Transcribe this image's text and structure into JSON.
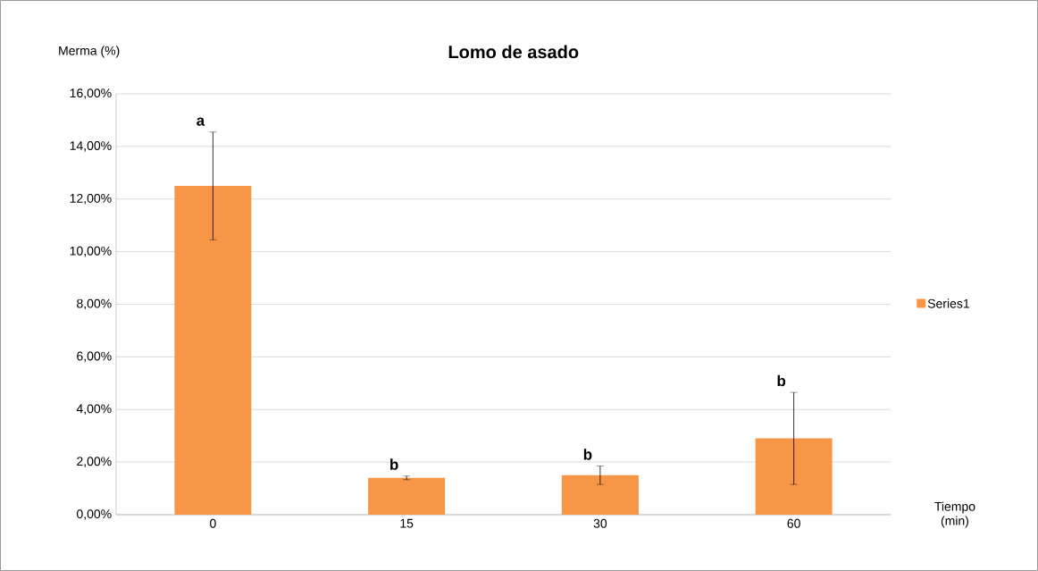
{
  "chart_data": {
    "type": "bar",
    "title": "Lomo de asado",
    "ylabel": "Merma (%)",
    "xlabel": "Tiempo (min)",
    "categories": [
      "0",
      "15",
      "30",
      "60"
    ],
    "series": [
      {
        "name": "Series1",
        "color": "#f79646",
        "values": [
          12.5,
          1.4,
          1.5,
          2.9
        ],
        "errors": [
          2.05,
          0.07,
          0.35,
          1.75
        ]
      }
    ],
    "ylim": [
      0,
      16
    ],
    "yticks": [
      {
        "value": 0,
        "label": "0,00%"
      },
      {
        "value": 2,
        "label": "2,00%"
      },
      {
        "value": 4,
        "label": "4,00%"
      },
      {
        "value": 6,
        "label": "6,00%"
      },
      {
        "value": 8,
        "label": "8,00%"
      },
      {
        "value": 10,
        "label": "10,00%"
      },
      {
        "value": 12,
        "label": "12,00%"
      },
      {
        "value": 14,
        "label": "14,00%"
      },
      {
        "value": 16,
        "label": "16,00%"
      }
    ],
    "grid": "y",
    "legend": "right",
    "annotations": [
      "a",
      "b",
      "b",
      "b"
    ]
  }
}
